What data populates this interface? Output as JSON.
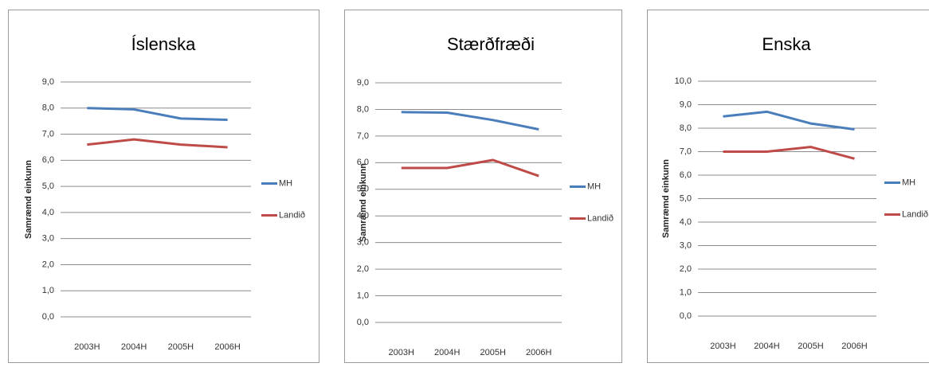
{
  "chart_data": [
    {
      "type": "line",
      "title": "Íslenska",
      "y_label": "Samræmd einkunn",
      "categories": [
        "2003H",
        "2004H",
        "2005H",
        "2006H"
      ],
      "series": [
        {
          "name": "MH",
          "color": "#4a7ebb",
          "values": [
            8.0,
            7.95,
            7.6,
            7.55
          ]
        },
        {
          "name": "Landið",
          "color": "#be4b48",
          "values": [
            6.6,
            6.8,
            6.6,
            6.5
          ]
        }
      ],
      "ylim": [
        0,
        9
      ],
      "yticks": [
        {
          "value": 0,
          "label": "0,0"
        },
        {
          "value": 1,
          "label": "1,0"
        },
        {
          "value": 2,
          "label": "2,0"
        },
        {
          "value": 3,
          "label": "3,0"
        },
        {
          "value": 4,
          "label": "4,0"
        },
        {
          "value": 5,
          "label": "5,0"
        },
        {
          "value": 6,
          "label": "6,0"
        },
        {
          "value": 7,
          "label": "7,0"
        },
        {
          "value": 8,
          "label": "8,0"
        },
        {
          "value": 9,
          "label": "9,0"
        }
      ],
      "grid": true,
      "legend": "right"
    },
    {
      "type": "line",
      "title": "Stærðfræði",
      "y_label": "Samræmd einkunn",
      "categories": [
        "2003H",
        "2004H",
        "2005H",
        "2006H"
      ],
      "series": [
        {
          "name": "MH",
          "color": "#4a7ebb",
          "values": [
            7.9,
            7.88,
            7.6,
            7.25
          ]
        },
        {
          "name": "Landið",
          "color": "#be4b48",
          "values": [
            5.8,
            5.8,
            6.1,
            5.5
          ]
        }
      ],
      "ylim": [
        0,
        9
      ],
      "yticks": [
        {
          "value": 0,
          "label": "0,0"
        },
        {
          "value": 1,
          "label": "1,0"
        },
        {
          "value": 2,
          "label": "2,0"
        },
        {
          "value": 3,
          "label": "3,0"
        },
        {
          "value": 4,
          "label": "4,0"
        },
        {
          "value": 5,
          "label": "5,0"
        },
        {
          "value": 6,
          "label": "6,0"
        },
        {
          "value": 7,
          "label": "7,0"
        },
        {
          "value": 8,
          "label": "8,0"
        },
        {
          "value": 9,
          "label": "9,0"
        }
      ],
      "grid": true,
      "legend": "right"
    },
    {
      "type": "line",
      "title": "Enska",
      "y_label": "Samræmd einkunn",
      "categories": [
        "2003H",
        "2004H",
        "2005H",
        "2006H"
      ],
      "series": [
        {
          "name": "MH",
          "color": "#4a7ebb",
          "values": [
            8.5,
            8.7,
            8.2,
            7.95
          ]
        },
        {
          "name": "Landið",
          "color": "#be4b48",
          "values": [
            7.0,
            7.0,
            7.2,
            6.7
          ]
        }
      ],
      "ylim": [
        0,
        10
      ],
      "yticks": [
        {
          "value": 0,
          "label": "0,0"
        },
        {
          "value": 1,
          "label": "1,0"
        },
        {
          "value": 2,
          "label": "2,0"
        },
        {
          "value": 3,
          "label": "3,0"
        },
        {
          "value": 4,
          "label": "4,0"
        },
        {
          "value": 5,
          "label": "5,0"
        },
        {
          "value": 6,
          "label": "6,0"
        },
        {
          "value": 7,
          "label": "7,0"
        },
        {
          "value": 8,
          "label": "8,0"
        },
        {
          "value": 9,
          "label": "9,0"
        },
        {
          "value": 10,
          "label": "10,0"
        }
      ],
      "grid": true,
      "legend": "right"
    }
  ]
}
